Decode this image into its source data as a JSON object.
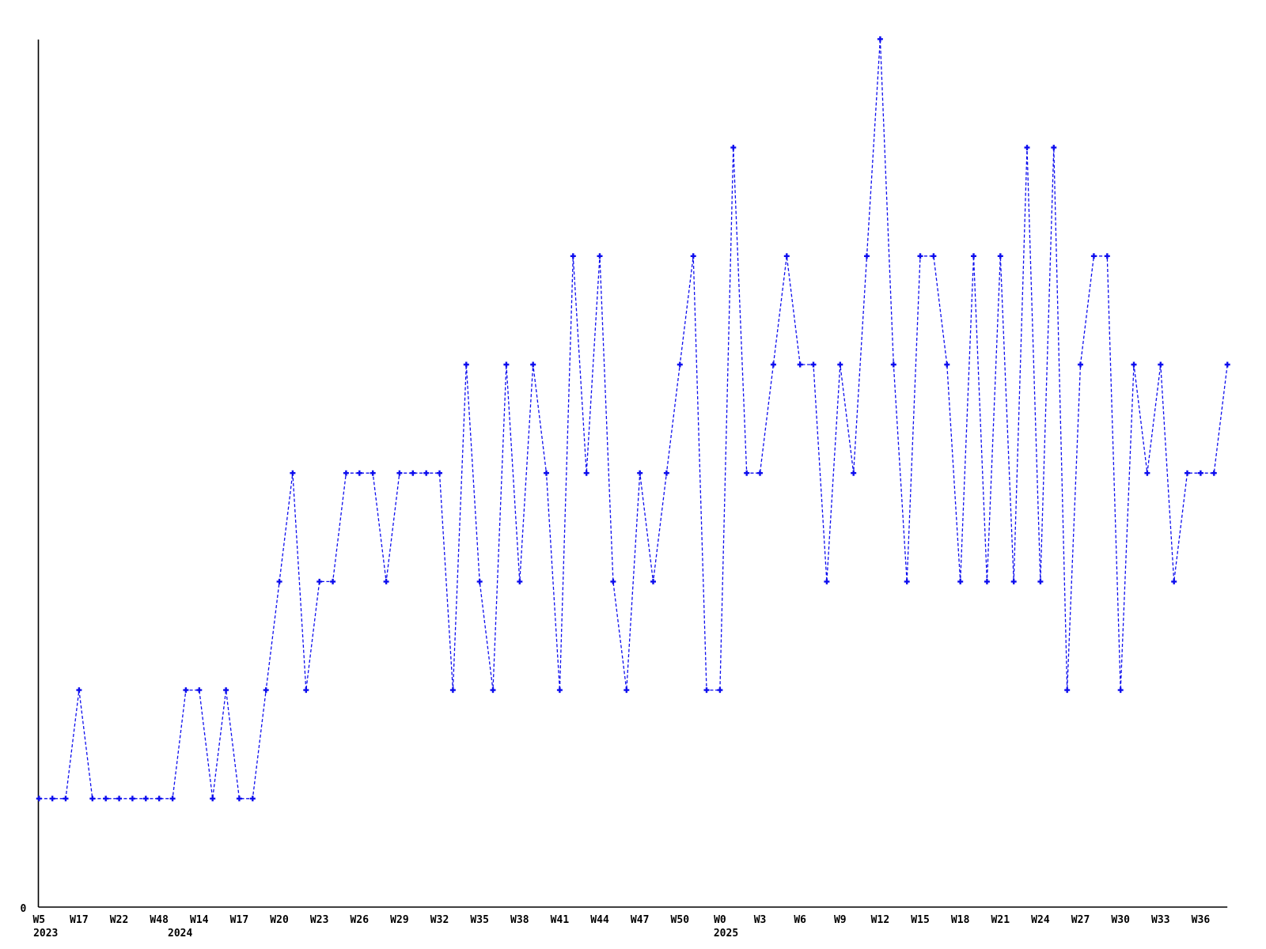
{
  "page": {
    "background_color": "#ffffff"
  },
  "chart_data": {
    "type": "line",
    "title": "",
    "xlabel": "",
    "ylabel": "",
    "legend": "none",
    "grid": "off",
    "line_color": "#0d0dee",
    "line_style": "dashed",
    "marker": "plus",
    "axis_color": "#000000",
    "text_color": "#000000",
    "y_origin_label": "0",
    "ylim": [
      0,
      8.7
    ],
    "tick_every": 3,
    "tick_labels": [
      "W5",
      "W17",
      "W22",
      "W48",
      "W14",
      "W17",
      "W20",
      "W23",
      "W26",
      "W29",
      "W32",
      "W35",
      "W38",
      "W41",
      "W44",
      "W47",
      "W50",
      "W0",
      "W3",
      "W6",
      "W9",
      "W12",
      "W15",
      "W18",
      "W21",
      "W24",
      "W27",
      "W30",
      "W33",
      "W36"
    ],
    "year_labels": [
      {
        "position": 0.5,
        "text": "2023"
      },
      {
        "position": 10.57,
        "text": "2024"
      },
      {
        "position": 51.45,
        "text": "2025"
      }
    ],
    "values": [
      1,
      1,
      1,
      2,
      1,
      1,
      1,
      1,
      1,
      1,
      1,
      2,
      2,
      1,
      2,
      1,
      1,
      2,
      3,
      4,
      2,
      3,
      3,
      4,
      4,
      4,
      3,
      4,
      4,
      4,
      4,
      2,
      5,
      3,
      2,
      5,
      3,
      5,
      4,
      2,
      6,
      4,
      6,
      3,
      2,
      4,
      3,
      4,
      5,
      6,
      2,
      2,
      7,
      4,
      4,
      5,
      6,
      5,
      5,
      3,
      5,
      4,
      6,
      8,
      5,
      3,
      6,
      6,
      5,
      3,
      6,
      3,
      6,
      3,
      7,
      3,
      7,
      2,
      5,
      6,
      6,
      2,
      5,
      4,
      5,
      3,
      4,
      4,
      4,
      5
    ]
  }
}
